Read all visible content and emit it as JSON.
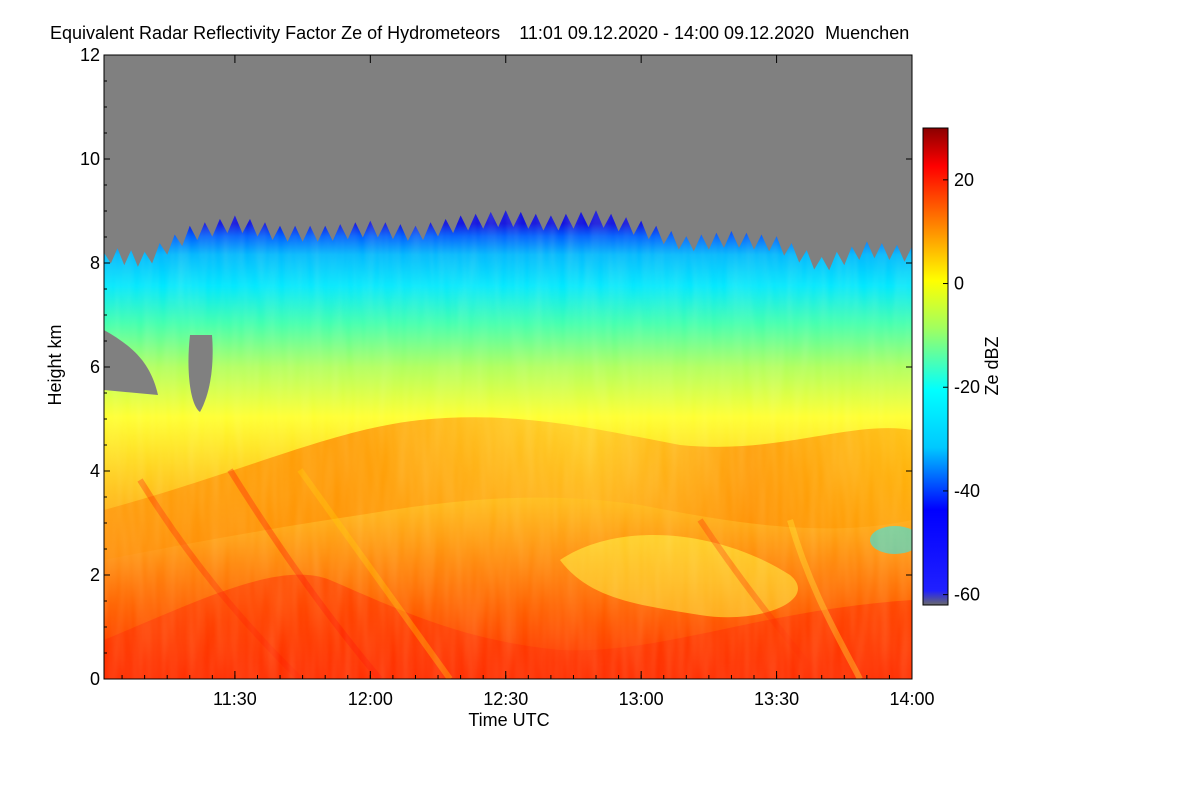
{
  "chart_data": {
    "type": "heatmap",
    "title": "Equivalent Radar Reflectivity Factor Ze of Hydrometeors",
    "time_range_label": "11:01 09.12.2020 - 14:00 09.12.2020",
    "location": "Muenchen",
    "xlabel": "Time UTC",
    "ylabel": "Height km",
    "colorbar_label": "Ze dBZ",
    "xlim": [
      "11:01",
      "14:00"
    ],
    "x_ticks": [
      "11:30",
      "12:00",
      "12:30",
      "13:00",
      "13:30",
      "14:00"
    ],
    "ylim": [
      0,
      12
    ],
    "y_ticks": [
      0,
      2,
      4,
      6,
      8,
      10,
      12
    ],
    "colorbar_range": [
      -62,
      30
    ],
    "colorbar_ticks": [
      -60,
      -40,
      -20,
      0,
      20
    ],
    "colormap": [
      "#00008b",
      "#0000ff",
      "#00bfff",
      "#00ffff",
      "#7fff7f",
      "#ffff00",
      "#ff7f00",
      "#ff0000",
      "#8b0000"
    ],
    "no_signal_color": "#808080",
    "cloud_top_km": [
      {
        "t": "11:01",
        "h": 8.2
      },
      {
        "t": "11:10",
        "h": 8.1
      },
      {
        "t": "11:20",
        "h": 8.6
      },
      {
        "t": "11:30",
        "h": 8.8
      },
      {
        "t": "11:40",
        "h": 8.6
      },
      {
        "t": "11:50",
        "h": 8.6
      },
      {
        "t": "12:00",
        "h": 8.7
      },
      {
        "t": "12:10",
        "h": 8.6
      },
      {
        "t": "12:20",
        "h": 8.8
      },
      {
        "t": "12:30",
        "h": 8.9
      },
      {
        "t": "12:40",
        "h": 8.8
      },
      {
        "t": "12:50",
        "h": 8.9
      },
      {
        "t": "13:00",
        "h": 8.7
      },
      {
        "t": "13:10",
        "h": 8.4
      },
      {
        "t": "13:20",
        "h": 8.5
      },
      {
        "t": "13:30",
        "h": 8.4
      },
      {
        "t": "13:40",
        "h": 8.0
      },
      {
        "t": "13:50",
        "h": 8.3
      },
      {
        "t": "14:00",
        "h": 8.2
      }
    ]
  }
}
